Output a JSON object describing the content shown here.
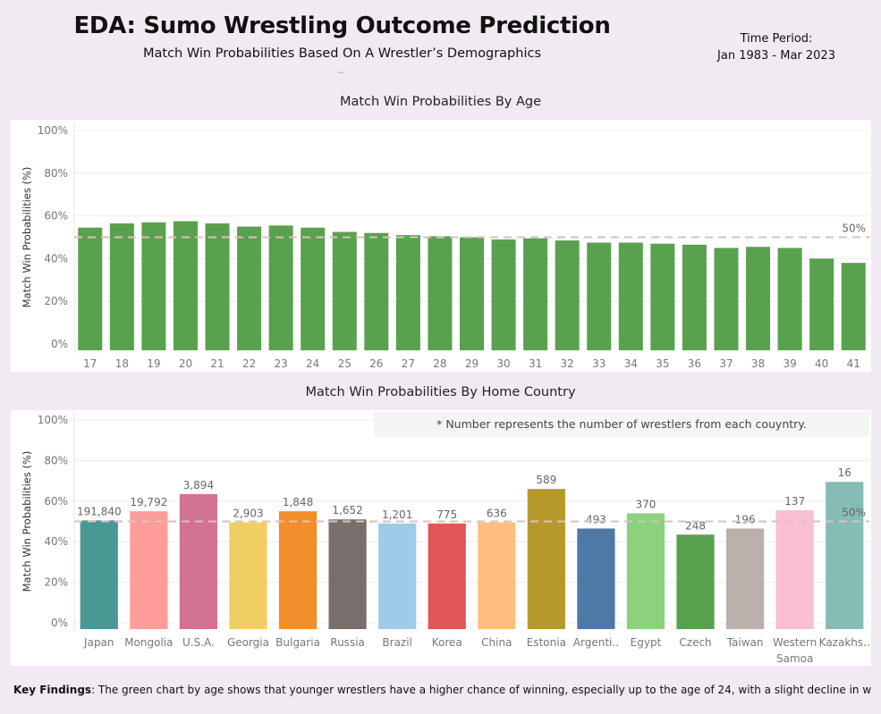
{
  "header": {
    "title": "EDA: Sumo Wrestling Outcome Prediction",
    "subtitle": "Match Win Probabilities Based On A Wrestler’s  Demographics",
    "dots": "..",
    "period_label": "Time Period:",
    "period_value": "Jan 1983 - Mar 2023"
  },
  "note": "* Number represents the number of wrestlers from each couyntry.",
  "findings": {
    "label": "Key Findings",
    "text": ": The green chart by age shows that younger wrestlers have a higher chance of winning, especially up to the age of 24, with a slight decline in win probabiliti.."
  },
  "chart_data": [
    {
      "type": "bar",
      "title": "Match Win Probabilities By Age",
      "ylabel": "Match Win Probabilities (%)",
      "ylim": [
        0,
        100
      ],
      "yticks": [
        "0%",
        "20%",
        "40%",
        "60%",
        "80%",
        "100%"
      ],
      "reference_line": {
        "value": 50,
        "label": "50%"
      },
      "color": "#59a14f",
      "categories": [
        "17",
        "18",
        "19",
        "20",
        "21",
        "22",
        "23",
        "24",
        "25",
        "26",
        "27",
        "28",
        "29",
        "30",
        "31",
        "32",
        "33",
        "34",
        "35",
        "36",
        "37",
        "38",
        "39",
        "40",
        "41"
      ],
      "values": [
        54.5,
        56.5,
        57,
        57.5,
        56.5,
        55,
        55.5,
        54.5,
        52.5,
        52,
        51,
        50.5,
        50,
        49,
        49.5,
        48.5,
        47.5,
        47.5,
        47,
        46.5,
        45,
        45.5,
        45,
        40,
        38
      ]
    },
    {
      "type": "bar",
      "title": "Match Win Probabilities By Home Country",
      "ylabel": "Match Win Probabilities (%)",
      "ylim": [
        0,
        100
      ],
      "yticks": [
        "0%",
        "20%",
        "40%",
        "60%",
        "80%",
        "100%"
      ],
      "reference_line": {
        "value": 50,
        "label": "50%"
      },
      "categories": [
        "Japan",
        "Mongolia",
        "U.S.A.",
        "Georgia",
        "Bulgaria",
        "Russia",
        "Brazil",
        "Korea",
        "China",
        "Estonia",
        "Argenti..",
        "Egypt",
        "Czech",
        "Taiwan",
        "Western Samoa",
        "Kazakhs.."
      ],
      "values": [
        50.5,
        55,
        63.5,
        49.5,
        55,
        51,
        49,
        49,
        49.5,
        66,
        46.5,
        54,
        43.5,
        46.5,
        55.5,
        69.5
      ],
      "data_labels": [
        "191,840",
        "19,792",
        "3,894",
        "2,903",
        "1,848",
        "1,652",
        "1,201",
        "775",
        "636",
        "589",
        "493",
        "370",
        "248",
        "196",
        "137",
        "16"
      ],
      "colors": [
        "#499894",
        "#ff9d9a",
        "#d37295",
        "#f1ce63",
        "#f28e2b",
        "#79706e",
        "#a0cbe8",
        "#e15759",
        "#ffbe7d",
        "#b6992d",
        "#4e79a7",
        "#8cd17d",
        "#59a14f",
        "#bab0ac",
        "#fabfd2",
        "#86bcb6"
      ]
    }
  ]
}
